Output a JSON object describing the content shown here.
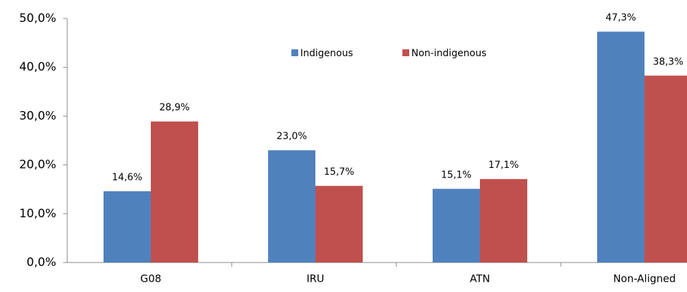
{
  "chart_data": {
    "type": "bar",
    "categories": [
      "G08",
      "IRU",
      "ATN",
      "Non-Aligned"
    ],
    "series": [
      {
        "name": "Indigenous",
        "color": "#4f81bd",
        "values": [
          14.6,
          23.0,
          15.1,
          47.3
        ],
        "value_labels": [
          "14,6%",
          "23,0%",
          "15,1%",
          "47,3%"
        ]
      },
      {
        "name": "Non-indigenous",
        "color": "#c0504d",
        "values": [
          28.9,
          15.7,
          17.1,
          38.3
        ],
        "value_labels": [
          "28,9%",
          "15,7%",
          "17,1%",
          "38,3%"
        ]
      }
    ],
    "ylim": [
      0,
      50
    ],
    "yticks": [
      {
        "value": 0,
        "label": "0,0%"
      },
      {
        "value": 10,
        "label": "10,0%"
      },
      {
        "value": 20,
        "label": "20,0%"
      },
      {
        "value": 30,
        "label": "30,0%"
      },
      {
        "value": 40,
        "label": "40,0%"
      },
      {
        "value": 50,
        "label": "50,0%"
      }
    ],
    "legend": "top-center"
  }
}
